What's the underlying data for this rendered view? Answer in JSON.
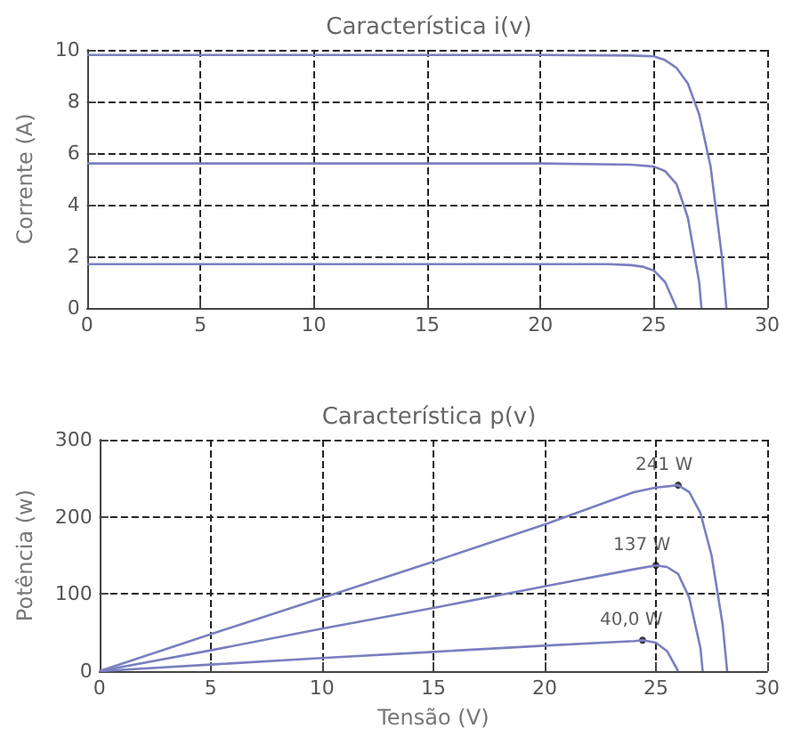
{
  "chart_data": [
    {
      "type": "line",
      "title": "Característica i(v)",
      "ylabel": "Corrente (A)",
      "xlim": [
        0,
        30
      ],
      "xticks": [
        0,
        5,
        10,
        15,
        20,
        25,
        30
      ],
      "ylim": [
        0,
        10
      ],
      "yticks": [
        0,
        2,
        4,
        6,
        8,
        10
      ],
      "grid": true,
      "marker": "none",
      "line_style": "solid",
      "series": [
        {
          "color": "#7a7fc0",
          "x": [
            0,
            5,
            10,
            15,
            20,
            24,
            25,
            25.5,
            26,
            26.5,
            27,
            27.5,
            28,
            28.2
          ],
          "values": [
            9.8,
            9.8,
            9.8,
            9.8,
            9.8,
            9.78,
            9.75,
            9.6,
            9.3,
            8.7,
            7.5,
            5.5,
            2,
            0
          ]
        },
        {
          "color": "#7a7fc0",
          "x": [
            0,
            5,
            10,
            15,
            20,
            24,
            25,
            25.5,
            26,
            26.5,
            27,
            27.1
          ],
          "values": [
            5.6,
            5.6,
            5.6,
            5.6,
            5.6,
            5.55,
            5.48,
            5.3,
            4.8,
            3.5,
            1,
            0
          ]
        },
        {
          "color": "#7a7fc0",
          "x": [
            0,
            5,
            10,
            15,
            20,
            23,
            24,
            24.5,
            25,
            25.5,
            26
          ],
          "values": [
            1.7,
            1.7,
            1.7,
            1.7,
            1.7,
            1.7,
            1.66,
            1.6,
            1.45,
            1,
            0
          ]
        }
      ]
    },
    {
      "type": "line",
      "title": "Característica p(v)",
      "xlabel": "Tensão (V)",
      "ylabel": "Potência (w)",
      "xlim": [
        0,
        30
      ],
      "xticks": [
        0,
        5,
        10,
        15,
        20,
        25,
        30
      ],
      "ylim": [
        0,
        300
      ],
      "yticks": [
        0,
        100,
        200,
        300
      ],
      "grid": true,
      "marker": "none",
      "line_style": "solid",
      "series": [
        {
          "color": "#7a7fc0",
          "x": [
            0,
            5,
            10,
            15,
            20,
            24,
            25,
            26,
            26.5,
            27,
            27.5,
            28,
            28.2
          ],
          "values": [
            0,
            48,
            95,
            142,
            190,
            232,
            238,
            241,
            232,
            205,
            150,
            60,
            0
          ]
        },
        {
          "color": "#7a7fc0",
          "x": [
            0,
            5,
            10,
            15,
            20,
            24,
            25,
            25.5,
            26,
            26.5,
            27,
            27.1
          ],
          "values": [
            0,
            27,
            55,
            82,
            110,
            132,
            137,
            135,
            126,
            95,
            30,
            0
          ]
        },
        {
          "color": "#7a7fc0",
          "x": [
            0,
            5,
            10,
            15,
            20,
            24,
            24.4,
            25,
            25.5,
            26
          ],
          "values": [
            0,
            8.5,
            17,
            25,
            33,
            39,
            40,
            37,
            26,
            0
          ]
        }
      ],
      "annotations": [
        {
          "text": "241 W",
          "x": 26,
          "y": 241
        },
        {
          "text": "137 W",
          "x": 25,
          "y": 137
        },
        {
          "text": "40,0 W",
          "x": 24.4,
          "y": 40
        }
      ]
    }
  ]
}
